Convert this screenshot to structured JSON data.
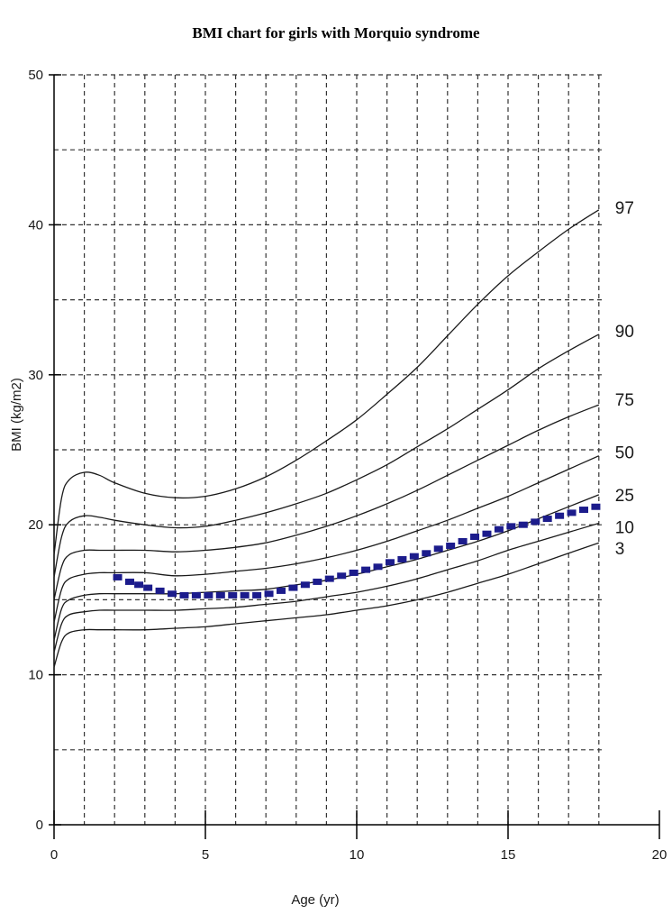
{
  "chart_data": {
    "type": "line",
    "title": "BMI chart for girls with Morquio syndrome",
    "xlabel": "Age (yr)",
    "ylabel": "BMI (kg/m2)",
    "xlim": [
      0,
      20
    ],
    "ylim": [
      0,
      50
    ],
    "x_ticks": [
      0,
      5,
      10,
      15,
      20
    ],
    "y_ticks": [
      0,
      10,
      20,
      30,
      40,
      50
    ],
    "grid": true,
    "x": [
      0,
      0.25,
      0.5,
      1,
      1.5,
      2,
      3,
      4,
      5,
      6,
      7,
      8,
      9,
      10,
      11,
      12,
      13,
      14,
      15,
      16,
      17,
      18
    ],
    "series": [
      {
        "name": "97",
        "values": [
          18.0,
          21.8,
          23.0,
          23.5,
          23.3,
          22.8,
          22.1,
          21.8,
          21.9,
          22.4,
          23.2,
          24.3,
          25.6,
          27.0,
          28.7,
          30.5,
          32.6,
          34.7,
          36.6,
          38.2,
          39.7,
          41.0
        ]
      },
      {
        "name": "90",
        "values": [
          16.5,
          19.2,
          20.2,
          20.6,
          20.5,
          20.3,
          20.0,
          19.8,
          19.9,
          20.3,
          20.8,
          21.4,
          22.1,
          23.0,
          24.0,
          25.2,
          26.4,
          27.7,
          29.0,
          30.4,
          31.6,
          32.7
        ]
      },
      {
        "name": "75",
        "values": [
          15.0,
          17.2,
          18.0,
          18.3,
          18.3,
          18.3,
          18.3,
          18.2,
          18.3,
          18.5,
          18.8,
          19.3,
          19.9,
          20.6,
          21.4,
          22.3,
          23.3,
          24.3,
          25.3,
          26.3,
          27.2,
          28.0
        ]
      },
      {
        "name": "50",
        "values": [
          13.5,
          15.7,
          16.4,
          16.7,
          16.8,
          16.8,
          16.8,
          16.6,
          16.7,
          16.9,
          17.1,
          17.4,
          17.8,
          18.3,
          18.9,
          19.6,
          20.3,
          21.1,
          21.9,
          22.8,
          23.7,
          24.6
        ]
      },
      {
        "name": "25",
        "values": [
          12.3,
          14.4,
          15.0,
          15.3,
          15.4,
          15.4,
          15.4,
          15.4,
          15.5,
          15.6,
          15.7,
          16.0,
          16.3,
          16.7,
          17.2,
          17.7,
          18.3,
          18.9,
          19.6,
          20.4,
          21.2,
          22.0
        ]
      },
      {
        "name": "10",
        "values": [
          11.5,
          13.4,
          14.0,
          14.2,
          14.3,
          14.3,
          14.3,
          14.3,
          14.4,
          14.5,
          14.7,
          14.9,
          15.2,
          15.5,
          15.9,
          16.4,
          17.0,
          17.6,
          18.3,
          18.9,
          19.5,
          20.1
        ]
      },
      {
        "name": "3",
        "values": [
          10.5,
          12.2,
          12.8,
          13.0,
          13.0,
          13.0,
          13.0,
          13.1,
          13.2,
          13.4,
          13.6,
          13.8,
          14.0,
          14.3,
          14.6,
          15.0,
          15.5,
          16.1,
          16.7,
          17.4,
          18.1,
          18.8
        ]
      }
    ],
    "patient": {
      "x": [
        2.1,
        2.5,
        2.8,
        3.1,
        3.5,
        3.9,
        4.3,
        4.7,
        5.1,
        5.5,
        5.9,
        6.3,
        6.7,
        7.1,
        7.5,
        7.9,
        8.3,
        8.7,
        9.1,
        9.5,
        9.9,
        10.3,
        10.7,
        11.1,
        11.5,
        11.9,
        12.3,
        12.7,
        13.1,
        13.5,
        13.9,
        14.3,
        14.7,
        15.1,
        15.5,
        15.9,
        16.3,
        16.7,
        17.1,
        17.5,
        17.9
      ],
      "y": [
        16.5,
        16.2,
        16.0,
        15.8,
        15.6,
        15.4,
        15.3,
        15.3,
        15.3,
        15.3,
        15.3,
        15.3,
        15.3,
        15.4,
        15.6,
        15.8,
        16.0,
        16.2,
        16.4,
        16.6,
        16.8,
        17.0,
        17.2,
        17.5,
        17.7,
        17.9,
        18.1,
        18.4,
        18.6,
        18.9,
        19.2,
        19.4,
        19.7,
        19.9,
        20.0,
        20.2,
        20.4,
        20.6,
        20.8,
        21.0,
        21.2
      ],
      "color": "#1c1c8c"
    },
    "line_color": "#1a1a1a"
  }
}
